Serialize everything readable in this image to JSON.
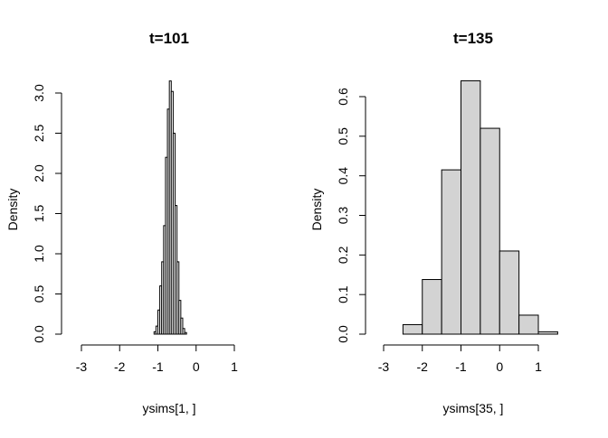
{
  "chart_data": [
    {
      "type": "bar",
      "title": "t=101",
      "xlabel": "ysims[1, ]",
      "ylabel": "Density",
      "xlim": [
        -3,
        1
      ],
      "ylim": [
        0,
        3.15
      ],
      "x_ticks": [
        "-3",
        "-2",
        "-1",
        "0",
        "1"
      ],
      "y_ticks": [
        "0.0",
        "0.5",
        "1.0",
        "1.5",
        "2.0",
        "2.5",
        "3.0"
      ],
      "bar_fill": "#ffffff",
      "bar_stroke": "#000000",
      "bin_width": 0.05,
      "bins": [
        {
          "x0": -1.1,
          "x1": -1.05,
          "density": 0.03
        },
        {
          "x0": -1.05,
          "x1": -1.0,
          "density": 0.1
        },
        {
          "x0": -1.0,
          "x1": -0.95,
          "density": 0.3
        },
        {
          "x0": -0.95,
          "x1": -0.9,
          "density": 0.6
        },
        {
          "x0": -0.9,
          "x1": -0.85,
          "density": 0.9
        },
        {
          "x0": -0.85,
          "x1": -0.8,
          "density": 1.35
        },
        {
          "x0": -0.8,
          "x1": -0.75,
          "density": 2.2
        },
        {
          "x0": -0.75,
          "x1": -0.7,
          "density": 2.8
        },
        {
          "x0": -0.7,
          "x1": -0.65,
          "density": 3.15
        },
        {
          "x0": -0.65,
          "x1": -0.6,
          "density": 3.02
        },
        {
          "x0": -0.6,
          "x1": -0.55,
          "density": 2.5
        },
        {
          "x0": -0.55,
          "x1": -0.5,
          "density": 1.6
        },
        {
          "x0": -0.5,
          "x1": -0.45,
          "density": 0.9
        },
        {
          "x0": -0.45,
          "x1": -0.4,
          "density": 0.42
        },
        {
          "x0": -0.4,
          "x1": -0.35,
          "density": 0.2
        },
        {
          "x0": -0.35,
          "x1": -0.3,
          "density": 0.07
        },
        {
          "x0": -0.3,
          "x1": -0.25,
          "density": 0.02
        }
      ]
    },
    {
      "type": "bar",
      "title": "t=135",
      "xlabel": "ysims[35, ]",
      "ylabel": "Density",
      "xlim": [
        -3,
        1.8
      ],
      "ylim": [
        0,
        0.64
      ],
      "x_ticks": [
        "-3",
        "-2",
        "-1",
        "0",
        "1"
      ],
      "y_ticks": [
        "0.0",
        "0.1",
        "0.2",
        "0.3",
        "0.4",
        "0.5",
        "0.6"
      ],
      "bar_fill": "#d3d3d3",
      "bar_stroke": "#000000",
      "bin_width": 0.5,
      "bins": [
        {
          "x0": -2.5,
          "x1": -2.0,
          "density": 0.024
        },
        {
          "x0": -2.0,
          "x1": -1.5,
          "density": 0.138
        },
        {
          "x0": -1.5,
          "x1": -1.0,
          "density": 0.415
        },
        {
          "x0": -1.0,
          "x1": -0.5,
          "density": 0.64
        },
        {
          "x0": -0.5,
          "x1": 0.0,
          "density": 0.52
        },
        {
          "x0": 0.0,
          "x1": 0.5,
          "density": 0.21
        },
        {
          "x0": 0.5,
          "x1": 1.0,
          "density": 0.048
        },
        {
          "x0": 1.0,
          "x1": 1.5,
          "density": 0.006
        }
      ]
    }
  ]
}
